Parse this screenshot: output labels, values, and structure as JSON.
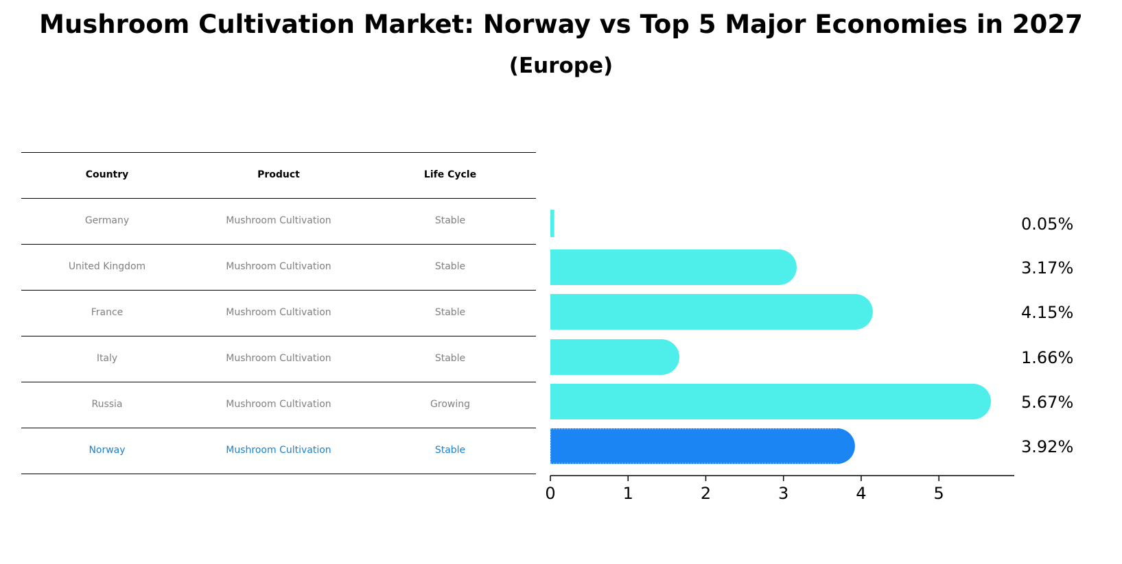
{
  "title": "Mushroom Cultivation Market: Norway vs Top 5 Major Economies in 2027",
  "subtitle": "(Europe)",
  "table": {
    "headers": [
      "Country",
      "Product",
      "Life Cycle"
    ],
    "rows": [
      [
        "Germany",
        "Mushroom Cultivation",
        "Stable"
      ],
      [
        "United Kingdom",
        "Mushroom Cultivation",
        "Stable"
      ],
      [
        "France",
        "Mushroom Cultivation",
        "Stable"
      ],
      [
        "Italy",
        "Mushroom Cultivation",
        "Stable"
      ],
      [
        "Russia",
        "Mushroom Cultivation",
        "Growing"
      ],
      [
        "Norway",
        "Mushroom Cultivation",
        "Stable"
      ]
    ]
  },
  "chart_data": {
    "type": "bar",
    "orientation": "horizontal",
    "categories": [
      "Germany",
      "United Kingdom",
      "France",
      "Italy",
      "Russia",
      "Norway"
    ],
    "values": [
      0.05,
      3.17,
      4.15,
      1.66,
      5.67,
      3.92
    ],
    "value_labels": [
      "0.05%",
      "3.17%",
      "4.15%",
      "1.66%",
      "5.67%",
      "3.92%"
    ],
    "highlight": "Norway",
    "xlim": [
      0,
      5.97
    ],
    "xticks": [
      "0",
      "1",
      "2",
      "3",
      "4",
      "5"
    ],
    "colors": {
      "bar": "#4eeeeb",
      "highlight": "#1a85f3"
    }
  }
}
